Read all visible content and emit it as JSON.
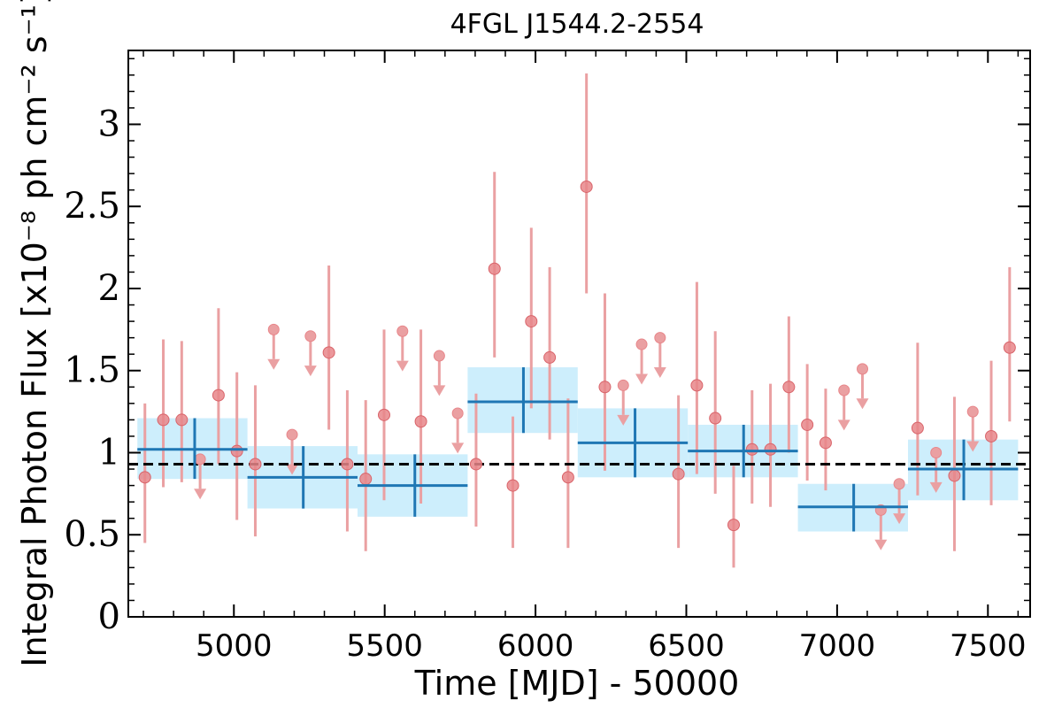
{
  "chart_data": {
    "type": "scatter",
    "title": "4FGL J1544.2-2554",
    "xlabel": "Time [MJD] - 50000",
    "ylabel": "Integral Photon Flux [x10⁻⁸ ph cm⁻² s⁻¹]",
    "xlim": [
      4650,
      7640
    ],
    "ylim": [
      0,
      3.45
    ],
    "xticks": [
      5000,
      5500,
      6000,
      6500,
      7000,
      7500
    ],
    "yticks": [
      0,
      0.5,
      1,
      1.5,
      2,
      2.5,
      3
    ],
    "ytick_labels": [
      "0",
      "0.5",
      "1",
      "1.5",
      "2",
      "2.5",
      "3"
    ],
    "mean_flux": 0.93,
    "colors": {
      "points": "#e8868a",
      "points_edge": "#d9646a",
      "errorbars": "#eaa0a2",
      "bins": "#1f77b4",
      "bin_band": "#cdeefc",
      "mean_line": "#000000"
    },
    "series": [
      {
        "kind": "detections",
        "points": [
          {
            "x": 4705,
            "y": 0.85,
            "lo": 0.45,
            "hi": 1.3
          },
          {
            "x": 4766,
            "y": 1.2,
            "lo": 0.79,
            "hi": 1.69
          },
          {
            "x": 4827,
            "y": 1.2,
            "lo": 0.82,
            "hi": 1.68
          },
          {
            "x": 4949,
            "y": 1.35,
            "lo": 0.93,
            "hi": 1.88
          },
          {
            "x": 5010,
            "y": 1.01,
            "lo": 0.59,
            "hi": 1.49
          },
          {
            "x": 5071,
            "y": 0.93,
            "lo": 0.49,
            "hi": 1.41
          },
          {
            "x": 5315,
            "y": 1.61,
            "lo": 1.14,
            "hi": 2.14
          },
          {
            "x": 5376,
            "y": 0.93,
            "lo": 0.52,
            "hi": 1.38
          },
          {
            "x": 5437,
            "y": 0.84,
            "lo": 0.4,
            "hi": 1.32
          },
          {
            "x": 5498,
            "y": 1.23,
            "lo": 0.71,
            "hi": 1.75
          },
          {
            "x": 5620,
            "y": 1.19,
            "lo": 0.69,
            "hi": 1.75
          },
          {
            "x": 5803,
            "y": 0.93,
            "lo": 0.55,
            "hi": 1.36
          },
          {
            "x": 5864,
            "y": 2.12,
            "lo": 1.58,
            "hi": 2.71
          },
          {
            "x": 5925,
            "y": 0.8,
            "lo": 0.42,
            "hi": 1.22
          },
          {
            "x": 5986,
            "y": 1.8,
            "lo": 1.27,
            "hi": 2.37
          },
          {
            "x": 6047,
            "y": 1.58,
            "lo": 1.08,
            "hi": 2.13
          },
          {
            "x": 6108,
            "y": 0.85,
            "lo": 0.42,
            "hi": 1.33
          },
          {
            "x": 6169,
            "y": 2.62,
            "lo": 1.97,
            "hi": 3.31
          },
          {
            "x": 6230,
            "y": 1.4,
            "lo": 0.89,
            "hi": 1.97
          },
          {
            "x": 6474,
            "y": 0.87,
            "lo": 0.42,
            "hi": 1.35
          },
          {
            "x": 6535,
            "y": 1.41,
            "lo": 0.87,
            "hi": 2.04
          },
          {
            "x": 6596,
            "y": 1.21,
            "lo": 0.75,
            "hi": 1.74
          },
          {
            "x": 6657,
            "y": 0.56,
            "lo": 0.3,
            "hi": 0.92
          },
          {
            "x": 6718,
            "y": 1.02,
            "lo": 0.69,
            "hi": 1.38
          },
          {
            "x": 6779,
            "y": 1.02,
            "lo": 0.67,
            "hi": 1.42
          },
          {
            "x": 6840,
            "y": 1.4,
            "lo": 1.0,
            "hi": 1.83
          },
          {
            "x": 6901,
            "y": 1.17,
            "lo": 0.83,
            "hi": 1.54
          },
          {
            "x": 6962,
            "y": 1.06,
            "lo": 0.77,
            "hi": 1.39
          },
          {
            "x": 7267,
            "y": 1.15,
            "lo": 0.74,
            "hi": 1.67
          },
          {
            "x": 7389,
            "y": 0.86,
            "lo": 0.4,
            "hi": 1.34
          },
          {
            "x": 7511,
            "y": 1.1,
            "lo": 0.68,
            "hi": 1.56
          },
          {
            "x": 7572,
            "y": 1.64,
            "lo": 1.19,
            "hi": 2.13
          }
        ]
      },
      {
        "kind": "upper_limits",
        "points": [
          {
            "x": 4888,
            "y": 0.96
          },
          {
            "x": 5132,
            "y": 1.75
          },
          {
            "x": 5193,
            "y": 1.11
          },
          {
            "x": 5254,
            "y": 1.71
          },
          {
            "x": 5559,
            "y": 1.74
          },
          {
            "x": 5681,
            "y": 1.59
          },
          {
            "x": 5742,
            "y": 1.24
          },
          {
            "x": 6291,
            "y": 1.41
          },
          {
            "x": 6352,
            "y": 1.66
          },
          {
            "x": 6413,
            "y": 1.7
          },
          {
            "x": 7023,
            "y": 1.38
          },
          {
            "x": 7084,
            "y": 1.51
          },
          {
            "x": 7145,
            "y": 0.65
          },
          {
            "x": 7206,
            "y": 0.81
          },
          {
            "x": 7328,
            "y": 1.0
          },
          {
            "x": 7450,
            "y": 1.25
          }
        ]
      },
      {
        "kind": "binned",
        "bins": [
          {
            "x0": 4680,
            "x1": 5045,
            "xc": 4870,
            "y": 1.02,
            "lo": 0.84,
            "hi": 1.21
          },
          {
            "x0": 5045,
            "x1": 5410,
            "xc": 5230,
            "y": 0.85,
            "lo": 0.66,
            "hi": 1.04
          },
          {
            "x0": 5410,
            "x1": 5775,
            "xc": 5600,
            "y": 0.8,
            "lo": 0.61,
            "hi": 0.99
          },
          {
            "x0": 5775,
            "x1": 6140,
            "xc": 5960,
            "y": 1.31,
            "lo": 1.12,
            "hi": 1.52
          },
          {
            "x0": 6140,
            "x1": 6505,
            "xc": 6330,
            "y": 1.06,
            "lo": 0.85,
            "hi": 1.27
          },
          {
            "x0": 6505,
            "x1": 6870,
            "xc": 6690,
            "y": 1.01,
            "lo": 0.85,
            "hi": 1.17
          },
          {
            "x0": 6870,
            "x1": 7235,
            "xc": 7055,
            "y": 0.67,
            "lo": 0.52,
            "hi": 0.81
          },
          {
            "x0": 7235,
            "x1": 7600,
            "xc": 7420,
            "y": 0.9,
            "lo": 0.71,
            "hi": 1.08
          }
        ]
      }
    ]
  }
}
